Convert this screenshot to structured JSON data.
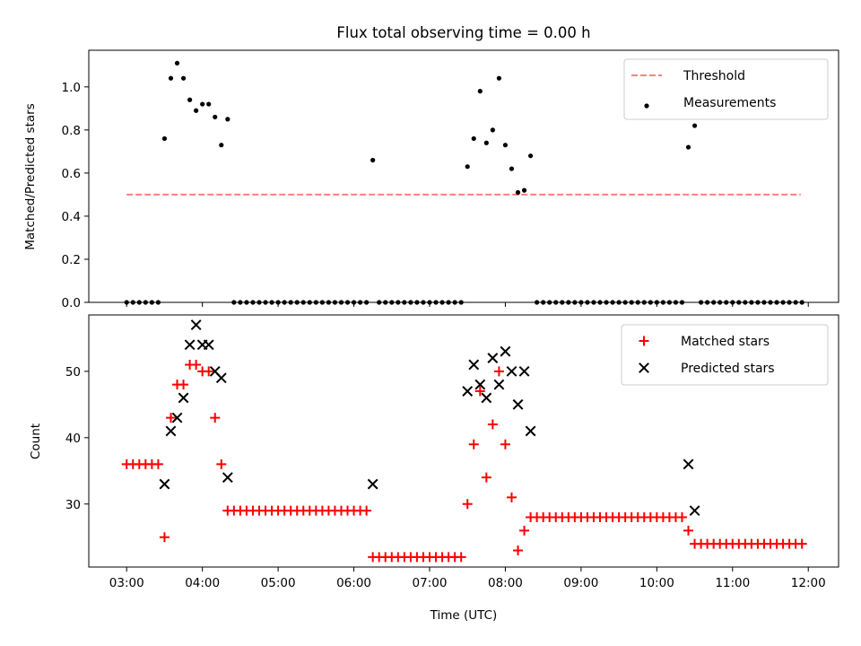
{
  "figure": {
    "title": "Flux total observing time = 0.00 h",
    "xlabel": "Time (UTC)"
  },
  "chart_data": [
    {
      "type": "scatter",
      "ylabel": "Matched/Predicted stars",
      "xlim_hours": [
        2.5,
        12.4
      ],
      "ylim": [
        0,
        1.17
      ],
      "yticks": [
        "0.0",
        "0.2",
        "0.4",
        "0.6",
        "0.8",
        "1.0"
      ],
      "legend_position": "upper right",
      "threshold": {
        "name": "Threshold",
        "value": 0.5,
        "x_range": [
          3.0,
          11.9
        ],
        "color": "#ff7f7f",
        "style": "dashed"
      },
      "series": [
        {
          "name": "Measurements",
          "color": "#000000",
          "marker": "dot",
          "points": [
            [
              "03:00",
              0
            ],
            [
              "03:05",
              0
            ],
            [
              "03:10",
              0
            ],
            [
              "03:15",
              0
            ],
            [
              "03:20",
              0
            ],
            [
              "03:25",
              0
            ],
            [
              "03:30",
              0.76
            ],
            [
              "03:35",
              1.04
            ],
            [
              "03:40",
              1.11
            ],
            [
              "03:45",
              1.04
            ],
            [
              "03:50",
              0.94
            ],
            [
              "03:55",
              0.89
            ],
            [
              "04:00",
              0.92
            ],
            [
              "04:05",
              0.92
            ],
            [
              "04:10",
              0.86
            ],
            [
              "04:15",
              0.73
            ],
            [
              "04:20",
              0.85
            ],
            [
              "04:25",
              0
            ],
            [
              "04:30",
              0
            ],
            [
              "04:35",
              0
            ],
            [
              "04:40",
              0
            ],
            [
              "04:45",
              0
            ],
            [
              "04:50",
              0
            ],
            [
              "04:55",
              0
            ],
            [
              "05:00",
              0
            ],
            [
              "05:05",
              0
            ],
            [
              "05:10",
              0
            ],
            [
              "05:15",
              0
            ],
            [
              "05:20",
              0
            ],
            [
              "05:25",
              0
            ],
            [
              "05:30",
              0
            ],
            [
              "05:35",
              0
            ],
            [
              "05:40",
              0
            ],
            [
              "05:45",
              0
            ],
            [
              "05:50",
              0
            ],
            [
              "05:55",
              0
            ],
            [
              "06:00",
              0
            ],
            [
              "06:05",
              0
            ],
            [
              "06:10",
              0
            ],
            [
              "06:15",
              0.66
            ],
            [
              "06:20",
              0
            ],
            [
              "06:25",
              0
            ],
            [
              "06:30",
              0
            ],
            [
              "06:35",
              0
            ],
            [
              "06:40",
              0
            ],
            [
              "06:45",
              0
            ],
            [
              "06:50",
              0
            ],
            [
              "06:55",
              0
            ],
            [
              "07:00",
              0
            ],
            [
              "07:05",
              0
            ],
            [
              "07:10",
              0
            ],
            [
              "07:15",
              0
            ],
            [
              "07:20",
              0
            ],
            [
              "07:25",
              0
            ],
            [
              "07:30",
              0.63
            ],
            [
              "07:35",
              0.76
            ],
            [
              "07:40",
              0.98
            ],
            [
              "07:45",
              0.74
            ],
            [
              "07:50",
              0.8
            ],
            [
              "07:55",
              1.04
            ],
            [
              "08:00",
              0.73
            ],
            [
              "08:05",
              0.62
            ],
            [
              "08:10",
              0.51
            ],
            [
              "08:15",
              0.52
            ],
            [
              "08:20",
              0.68
            ],
            [
              "08:25",
              0
            ],
            [
              "08:30",
              0
            ],
            [
              "08:35",
              0
            ],
            [
              "08:40",
              0
            ],
            [
              "08:45",
              0
            ],
            [
              "08:50",
              0
            ],
            [
              "08:55",
              0
            ],
            [
              "09:00",
              0
            ],
            [
              "09:05",
              0
            ],
            [
              "09:10",
              0
            ],
            [
              "09:15",
              0
            ],
            [
              "09:20",
              0
            ],
            [
              "09:25",
              0
            ],
            [
              "09:30",
              0
            ],
            [
              "09:35",
              0
            ],
            [
              "09:40",
              0
            ],
            [
              "09:45",
              0
            ],
            [
              "09:50",
              0
            ],
            [
              "09:55",
              0
            ],
            [
              "10:00",
              0
            ],
            [
              "10:05",
              0
            ],
            [
              "10:10",
              0
            ],
            [
              "10:15",
              0
            ],
            [
              "10:20",
              0
            ],
            [
              "10:25",
              0.72
            ],
            [
              "10:30",
              0.82
            ],
            [
              "10:35",
              0
            ],
            [
              "10:40",
              0
            ],
            [
              "10:45",
              0
            ],
            [
              "10:50",
              0
            ],
            [
              "10:55",
              0
            ],
            [
              "11:00",
              0
            ],
            [
              "11:05",
              0
            ],
            [
              "11:10",
              0
            ],
            [
              "11:15",
              0
            ],
            [
              "11:20",
              0
            ],
            [
              "11:25",
              0
            ],
            [
              "11:30",
              0
            ],
            [
              "11:35",
              0
            ],
            [
              "11:40",
              0
            ],
            [
              "11:45",
              0
            ],
            [
              "11:50",
              0
            ],
            [
              "11:55",
              0
            ]
          ]
        }
      ]
    },
    {
      "type": "scatter",
      "ylabel": "Count",
      "xlim_hours": [
        2.5,
        12.4
      ],
      "ylim": [
        20.5,
        58.5
      ],
      "yticks": [
        "30",
        "40",
        "50"
      ],
      "xticks": [
        "03:00",
        "04:00",
        "05:00",
        "06:00",
        "07:00",
        "08:00",
        "09:00",
        "10:00",
        "11:00",
        "12:00"
      ],
      "legend_position": "upper right",
      "series": [
        {
          "name": "Matched stars",
          "color": "#ff0000",
          "marker": "plus",
          "points": [
            [
              "03:00",
              36
            ],
            [
              "03:05",
              36
            ],
            [
              "03:10",
              36
            ],
            [
              "03:15",
              36
            ],
            [
              "03:20",
              36
            ],
            [
              "03:25",
              36
            ],
            [
              "03:30",
              25
            ],
            [
              "03:35",
              43
            ],
            [
              "03:40",
              48
            ],
            [
              "03:45",
              48
            ],
            [
              "03:50",
              51
            ],
            [
              "03:55",
              51
            ],
            [
              "04:00",
              50
            ],
            [
              "04:05",
              50
            ],
            [
              "04:10",
              43
            ],
            [
              "04:15",
              36
            ],
            [
              "04:20",
              29
            ],
            [
              "04:25",
              29
            ],
            [
              "04:30",
              29
            ],
            [
              "04:35",
              29
            ],
            [
              "04:40",
              29
            ],
            [
              "04:45",
              29
            ],
            [
              "04:50",
              29
            ],
            [
              "04:55",
              29
            ],
            [
              "05:00",
              29
            ],
            [
              "05:05",
              29
            ],
            [
              "05:10",
              29
            ],
            [
              "05:15",
              29
            ],
            [
              "05:20",
              29
            ],
            [
              "05:25",
              29
            ],
            [
              "05:30",
              29
            ],
            [
              "05:35",
              29
            ],
            [
              "05:40",
              29
            ],
            [
              "05:45",
              29
            ],
            [
              "05:50",
              29
            ],
            [
              "05:55",
              29
            ],
            [
              "06:00",
              29
            ],
            [
              "06:05",
              29
            ],
            [
              "06:10",
              29
            ],
            [
              "06:15",
              22
            ],
            [
              "06:20",
              22
            ],
            [
              "06:25",
              22
            ],
            [
              "06:30",
              22
            ],
            [
              "06:35",
              22
            ],
            [
              "06:40",
              22
            ],
            [
              "06:45",
              22
            ],
            [
              "06:50",
              22
            ],
            [
              "06:55",
              22
            ],
            [
              "07:00",
              22
            ],
            [
              "07:05",
              22
            ],
            [
              "07:10",
              22
            ],
            [
              "07:15",
              22
            ],
            [
              "07:20",
              22
            ],
            [
              "07:25",
              22
            ],
            [
              "07:30",
              30
            ],
            [
              "07:35",
              39
            ],
            [
              "07:40",
              47
            ],
            [
              "07:45",
              34
            ],
            [
              "07:50",
              42
            ],
            [
              "07:55",
              50
            ],
            [
              "08:00",
              39
            ],
            [
              "08:05",
              31
            ],
            [
              "08:10",
              23
            ],
            [
              "08:15",
              26
            ],
            [
              "08:20",
              28
            ],
            [
              "08:25",
              28
            ],
            [
              "08:30",
              28
            ],
            [
              "08:35",
              28
            ],
            [
              "08:40",
              28
            ],
            [
              "08:45",
              28
            ],
            [
              "08:50",
              28
            ],
            [
              "08:55",
              28
            ],
            [
              "09:00",
              28
            ],
            [
              "09:05",
              28
            ],
            [
              "09:10",
              28
            ],
            [
              "09:15",
              28
            ],
            [
              "09:20",
              28
            ],
            [
              "09:25",
              28
            ],
            [
              "09:30",
              28
            ],
            [
              "09:35",
              28
            ],
            [
              "09:40",
              28
            ],
            [
              "09:45",
              28
            ],
            [
              "09:50",
              28
            ],
            [
              "09:55",
              28
            ],
            [
              "10:00",
              28
            ],
            [
              "10:05",
              28
            ],
            [
              "10:10",
              28
            ],
            [
              "10:15",
              28
            ],
            [
              "10:20",
              28
            ],
            [
              "10:25",
              26
            ],
            [
              "10:30",
              24
            ],
            [
              "10:35",
              24
            ],
            [
              "10:40",
              24
            ],
            [
              "10:45",
              24
            ],
            [
              "10:50",
              24
            ],
            [
              "10:55",
              24
            ],
            [
              "11:00",
              24
            ],
            [
              "11:05",
              24
            ],
            [
              "11:10",
              24
            ],
            [
              "11:15",
              24
            ],
            [
              "11:20",
              24
            ],
            [
              "11:25",
              24
            ],
            [
              "11:30",
              24
            ],
            [
              "11:35",
              24
            ],
            [
              "11:40",
              24
            ],
            [
              "11:45",
              24
            ],
            [
              "11:50",
              24
            ],
            [
              "11:55",
              24
            ]
          ]
        },
        {
          "name": "Predicted stars",
          "color": "#000000",
          "marker": "x",
          "points": [
            [
              "03:30",
              33
            ],
            [
              "03:35",
              41
            ],
            [
              "03:40",
              43
            ],
            [
              "03:45",
              46
            ],
            [
              "03:50",
              54
            ],
            [
              "03:55",
              57
            ],
            [
              "04:00",
              54
            ],
            [
              "04:05",
              54
            ],
            [
              "04:10",
              50
            ],
            [
              "04:15",
              49
            ],
            [
              "04:20",
              34
            ],
            [
              "06:15",
              33
            ],
            [
              "07:30",
              47
            ],
            [
              "07:35",
              51
            ],
            [
              "07:40",
              48
            ],
            [
              "07:45",
              46
            ],
            [
              "07:50",
              52
            ],
            [
              "07:55",
              48
            ],
            [
              "08:00",
              53
            ],
            [
              "08:05",
              50
            ],
            [
              "08:10",
              45
            ],
            [
              "08:15",
              50
            ],
            [
              "08:20",
              41
            ],
            [
              "10:25",
              36
            ],
            [
              "10:30",
              29
            ]
          ]
        }
      ]
    }
  ]
}
